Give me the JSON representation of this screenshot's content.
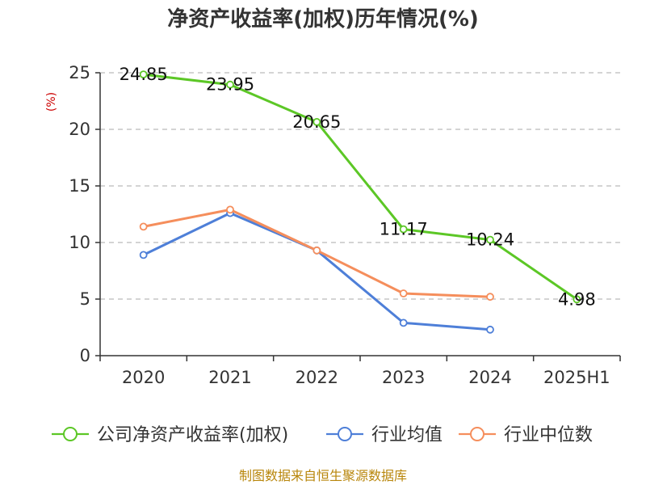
{
  "chart_data": {
    "type": "line",
    "title": "净资产收益率(加权)历年情况(%)",
    "y_unit": "(%)",
    "categories": [
      "2020",
      "2021",
      "2022",
      "2023",
      "2024",
      "2025H1"
    ],
    "ylim": [
      0,
      25
    ],
    "yticks": [
      0,
      5,
      10,
      15,
      20,
      25
    ],
    "grid": true,
    "legend_position": "bottom",
    "series": [
      {
        "name": "公司净资产收益率(加权)",
        "color": "#5cc726",
        "values": [
          24.85,
          23.95,
          20.65,
          11.17,
          10.24,
          4.98
        ],
        "labels": [
          "24.85",
          "23.95",
          "20.65",
          "11.17",
          "10.24",
          "4.98"
        ]
      },
      {
        "name": "行业均值",
        "color": "#4e7fd8",
        "values": [
          8.9,
          12.6,
          9.3,
          2.9,
          2.3,
          null
        ]
      },
      {
        "name": "行业中位数",
        "color": "#f58e5c",
        "values": [
          11.4,
          12.9,
          9.3,
          5.5,
          5.2,
          null
        ]
      }
    ],
    "source": "制图数据来自恒生聚源数据库"
  }
}
